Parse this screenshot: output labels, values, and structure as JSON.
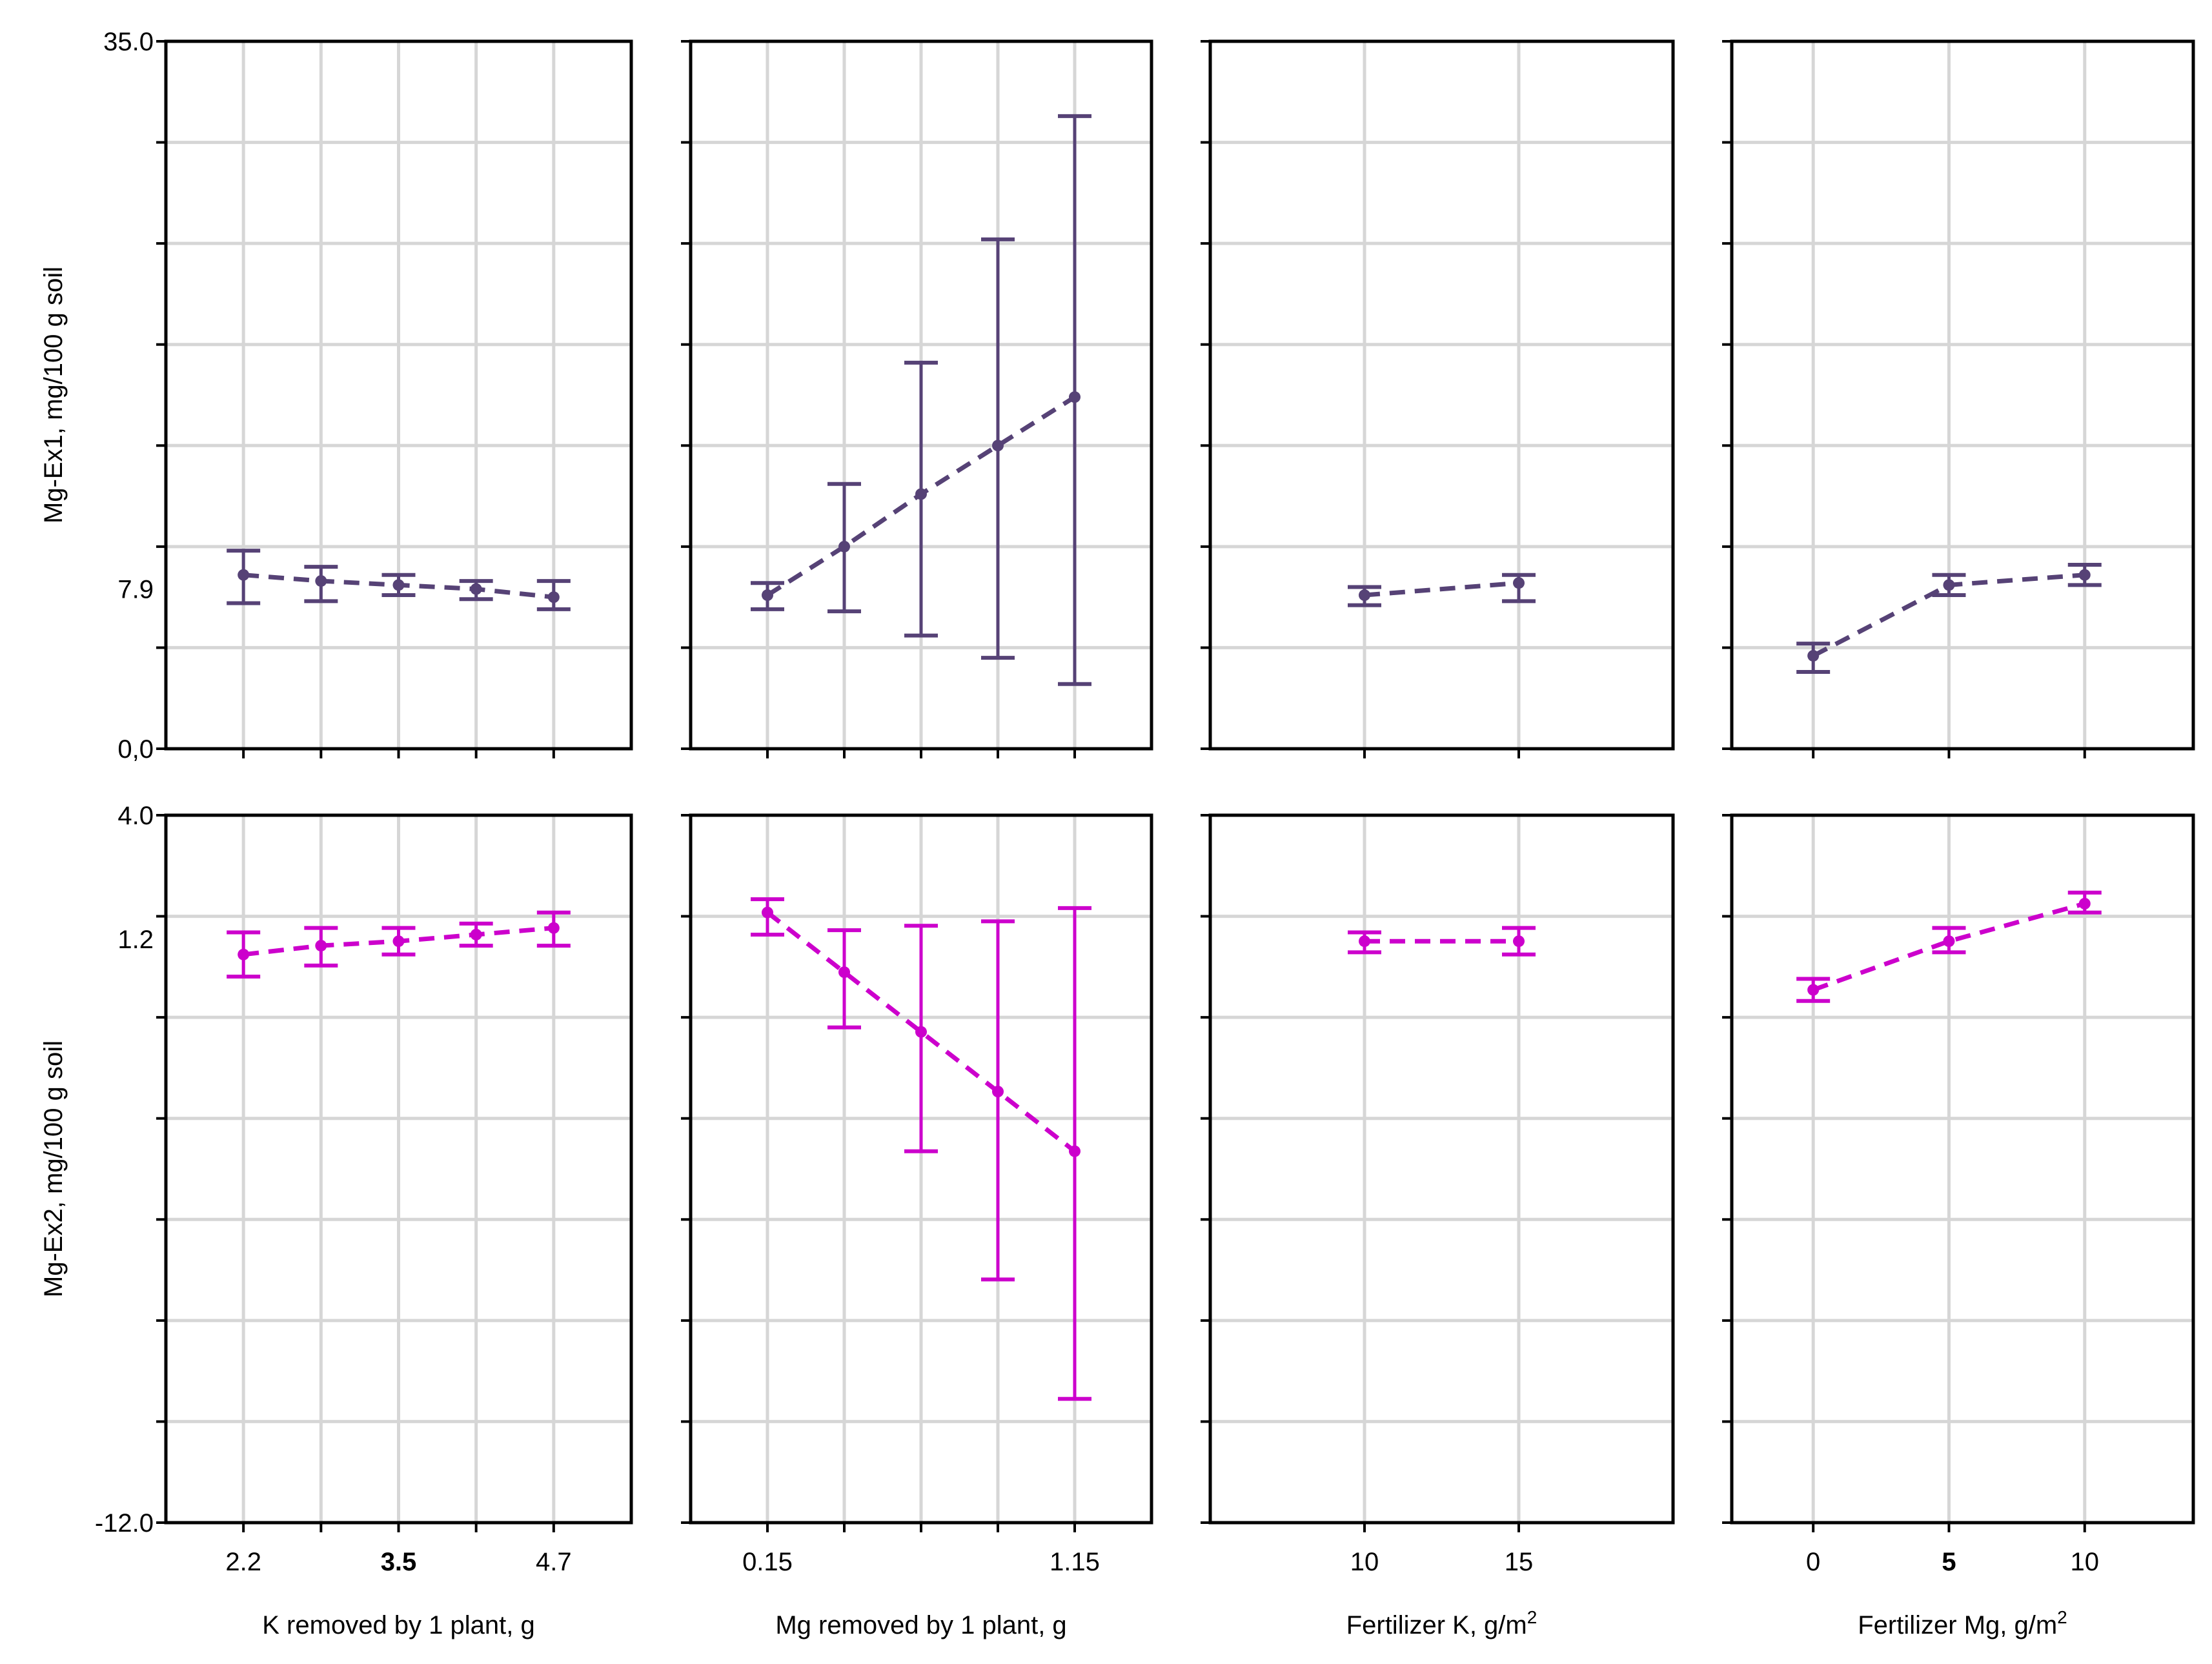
{
  "colors": {
    "row1": "#564276",
    "row2": "#cc00cc",
    "grid": "#d6d6d6",
    "frame": "#000000"
  },
  "chart_data": {
    "type": "line",
    "rows": [
      {
        "ylabel": "Mg-Ex1, mg/100 g soil",
        "ylim": [
          0,
          35
        ],
        "ytick_labels": [
          {
            "value": 35,
            "label": "35.0"
          },
          {
            "value": 7.9,
            "label": "7.9"
          },
          {
            "value": 0,
            "label": "0,0"
          }
        ]
      },
      {
        "ylabel": "Mg-Ex2, mg/100 g soil",
        "ylim": [
          -12,
          4
        ],
        "ytick_labels": [
          {
            "value": 4,
            "label": "4.0"
          },
          {
            "value": 1.2,
            "label": "1.2"
          },
          {
            "value": -12,
            "label": "-12.0"
          }
        ]
      }
    ],
    "columns": [
      {
        "xlabel": "K removed by 1 plant, g",
        "xlabel_sup": "",
        "x": [
          2.2,
          2.825,
          3.45,
          4.075,
          4.7
        ],
        "xlim": [
          1.575,
          5.325
        ],
        "xtick_labels": [
          {
            "value": 2.2,
            "label": "2.2",
            "bold": false
          },
          {
            "value": 3.45,
            "label": "3.5",
            "bold": true
          },
          {
            "value": 4.7,
            "label": "4.7",
            "bold": false
          }
        ],
        "row1": {
          "mean": [
            8.6,
            8.3,
            8.1,
            7.9,
            7.5
          ],
          "lower": [
            7.2,
            7.3,
            7.6,
            7.4,
            6.9
          ],
          "upper": [
            9.8,
            9.0,
            8.6,
            8.3,
            8.3
          ]
        },
        "row2": {
          "mean": [
            0.85,
            1.05,
            1.15,
            1.3,
            1.45
          ],
          "lower": [
            0.35,
            0.6,
            0.85,
            1.05,
            1.05
          ],
          "upper": [
            1.35,
            1.45,
            1.45,
            1.55,
            1.8
          ]
        }
      },
      {
        "xlabel": "Mg removed by 1 plant, g",
        "xlabel_sup": "",
        "x": [
          0.15,
          0.4,
          0.65,
          0.9,
          1.15
        ],
        "xlim": [
          -0.1,
          1.4
        ],
        "xtick_labels": [
          {
            "value": 0.15,
            "label": "0.15",
            "bold": false
          },
          {
            "value": 1.15,
            "label": "1.15",
            "bold": false
          }
        ],
        "row1": {
          "mean": [
            7.6,
            10.0,
            12.6,
            15.0,
            17.4
          ],
          "lower": [
            6.9,
            6.8,
            5.6,
            4.5,
            3.2
          ],
          "upper": [
            8.2,
            13.1,
            19.1,
            25.2,
            31.3
          ]
        },
        "row2": {
          "mean": [
            1.8,
            0.45,
            -0.9,
            -2.25,
            -3.6
          ],
          "lower": [
            1.3,
            -0.8,
            -3.6,
            -6.5,
            -9.2
          ],
          "upper": [
            2.1,
            1.4,
            1.5,
            1.6,
            1.9
          ]
        }
      },
      {
        "xlabel": "Fertilizer K, g/m",
        "xlabel_sup": "2",
        "x": [
          10,
          15
        ],
        "xlim": [
          5,
          20
        ],
        "xtick_labels": [
          {
            "value": 10,
            "label": "10",
            "bold": false
          },
          {
            "value": 15,
            "label": "15",
            "bold": false
          }
        ],
        "row1": {
          "mean": [
            7.6,
            8.2
          ],
          "lower": [
            7.1,
            7.3
          ],
          "upper": [
            8.0,
            8.6
          ]
        },
        "row2": {
          "mean": [
            1.15,
            1.15
          ],
          "lower": [
            0.9,
            0.85
          ],
          "upper": [
            1.35,
            1.45
          ]
        }
      },
      {
        "xlabel": "Fertilizer Mg, g/m",
        "xlabel_sup": "2",
        "x": [
          0,
          5,
          10
        ],
        "xlim": [
          -3,
          14
        ],
        "xtick_labels": [
          {
            "value": 0,
            "label": "0",
            "bold": false
          },
          {
            "value": 5,
            "label": "5",
            "bold": true
          },
          {
            "value": 10,
            "label": "10",
            "bold": false
          }
        ],
        "row1": {
          "mean": [
            4.6,
            8.1,
            8.6
          ],
          "lower": [
            3.8,
            7.6,
            8.1
          ],
          "upper": [
            5.2,
            8.6,
            9.1
          ]
        },
        "row2": {
          "mean": [
            0.05,
            1.15,
            2.0
          ],
          "lower": [
            -0.2,
            0.9,
            1.8
          ],
          "upper": [
            0.3,
            1.45,
            2.25
          ]
        }
      }
    ],
    "grid": true,
    "legend": "none"
  }
}
